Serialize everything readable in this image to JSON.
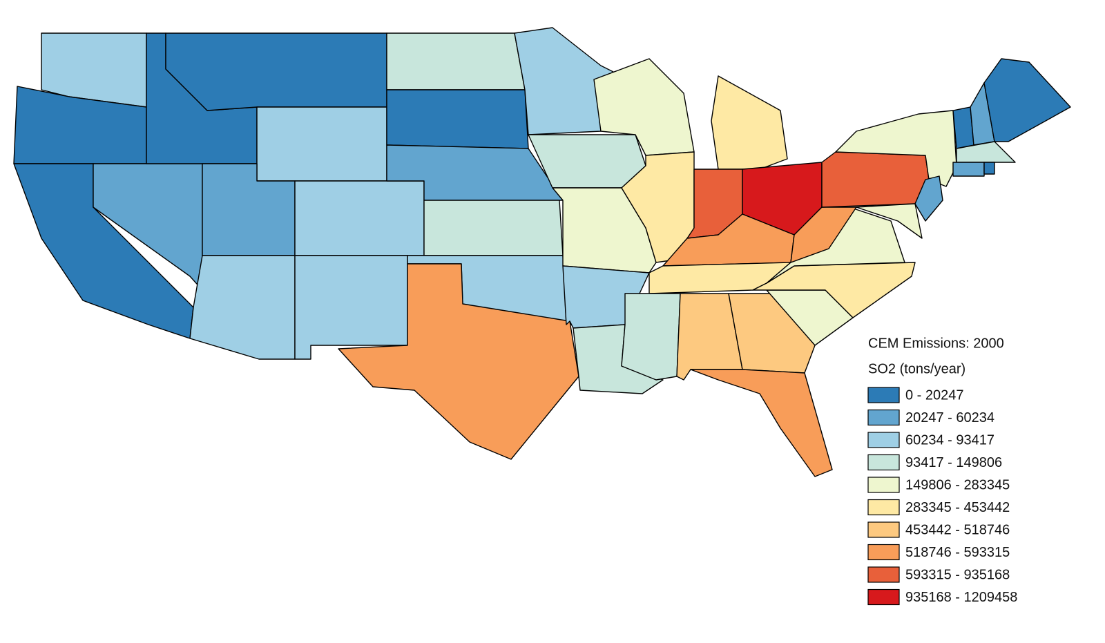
{
  "legend": {
    "title": "CEM Emissions: 2000",
    "subtitle": "SO2 (tons/year)",
    "items": [
      {
        "label": "0 - 20247",
        "color": "#2c7bb6"
      },
      {
        "label": "20247 - 60234",
        "color": "#62a5cf"
      },
      {
        "label": "60234 - 93417",
        "color": "#9fcfe5"
      },
      {
        "label": "93417 - 149806",
        "color": "#c8e6dc"
      },
      {
        "label": "149806 - 283345",
        "color": "#eef6cf"
      },
      {
        "label": "283345 - 453442",
        "color": "#fee9a4"
      },
      {
        "label": "453442 - 518746",
        "color": "#fdc980"
      },
      {
        "label": "518746 - 593315",
        "color": "#f89d59"
      },
      {
        "label": "593315 - 935168",
        "color": "#e8603a"
      },
      {
        "label": "935168 - 1209458",
        "color": "#d7191c"
      }
    ]
  }
}
